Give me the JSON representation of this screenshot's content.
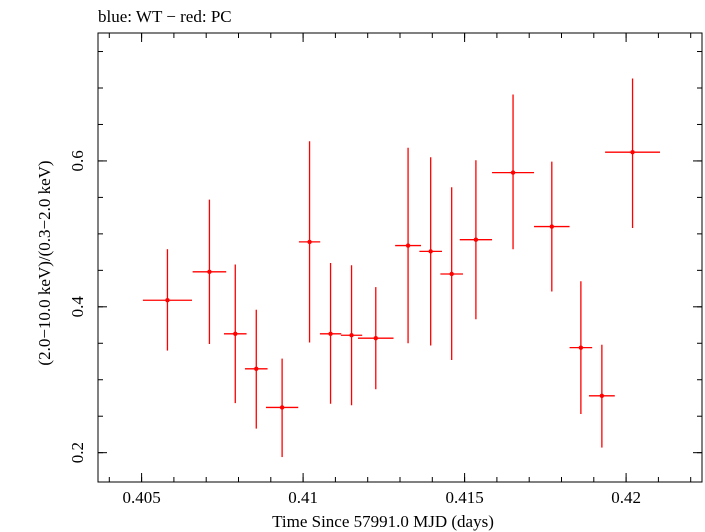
{
  "chart_data": {
    "type": "scatter",
    "title": "blue: WT − red: PC",
    "xlabel": "Time Since 57991.0 MJD (days)",
    "ylabel": "(2.0−10.0 keV)/(0.3−2.0 keV)",
    "xlim": [
      0.40365,
      0.42235
    ],
    "ylim": [
      0.1598,
      0.7754
    ],
    "x_ticks": [
      {
        "value": 0.405,
        "label": "0.405"
      },
      {
        "value": 0.41,
        "label": "0.41"
      },
      {
        "value": 0.415,
        "label": "0.415"
      },
      {
        "value": 0.42,
        "label": "0.42"
      }
    ],
    "x_minor_step": 0.001,
    "y_ticks": [
      {
        "value": 0.2,
        "label": "0.2"
      },
      {
        "value": 0.4,
        "label": "0.4"
      },
      {
        "value": 0.6,
        "label": "0.6"
      }
    ],
    "y_minor_step": 0.05,
    "grid": false,
    "series": [
      {
        "name": "PC",
        "color": "#ff0000",
        "points": [
          {
            "x": 0.4058,
            "y": 0.409,
            "xerr": 0.00076,
            "ylo": 0.34,
            "yhi": 0.479
          },
          {
            "x": 0.4071,
            "y": 0.448,
            "xerr": 0.00052,
            "ylo": 0.349,
            "yhi": 0.547
          },
          {
            "x": 0.4079,
            "y": 0.363,
            "xerr": 0.00035,
            "ylo": 0.268,
            "yhi": 0.458
          },
          {
            "x": 0.40855,
            "y": 0.315,
            "xerr": 0.00035,
            "ylo": 0.233,
            "yhi": 0.396
          },
          {
            "x": 0.40935,
            "y": 0.262,
            "xerr": 0.0005,
            "ylo": 0.194,
            "yhi": 0.329
          },
          {
            "x": 0.4102,
            "y": 0.489,
            "xerr": 0.00033,
            "ylo": 0.351,
            "yhi": 0.627
          },
          {
            "x": 0.41085,
            "y": 0.363,
            "xerr": 0.00033,
            "ylo": 0.267,
            "yhi": 0.46
          },
          {
            "x": 0.4115,
            "y": 0.361,
            "xerr": 0.00033,
            "ylo": 0.265,
            "yhi": 0.457
          },
          {
            "x": 0.41225,
            "y": 0.357,
            "xerr": 0.00055,
            "ylo": 0.287,
            "yhi": 0.427
          },
          {
            "x": 0.41325,
            "y": 0.484,
            "xerr": 0.0004,
            "ylo": 0.35,
            "yhi": 0.618
          },
          {
            "x": 0.41395,
            "y": 0.476,
            "xerr": 0.00035,
            "ylo": 0.347,
            "yhi": 0.605
          },
          {
            "x": 0.4146,
            "y": 0.445,
            "xerr": 0.00035,
            "ylo": 0.327,
            "yhi": 0.564
          },
          {
            "x": 0.41535,
            "y": 0.492,
            "xerr": 0.0005,
            "ylo": 0.383,
            "yhi": 0.601
          },
          {
            "x": 0.4165,
            "y": 0.584,
            "xerr": 0.00065,
            "ylo": 0.479,
            "yhi": 0.691
          },
          {
            "x": 0.4177,
            "y": 0.51,
            "xerr": 0.00055,
            "ylo": 0.421,
            "yhi": 0.599
          },
          {
            "x": 0.4186,
            "y": 0.344,
            "xerr": 0.00035,
            "ylo": 0.253,
            "yhi": 0.435
          },
          {
            "x": 0.41925,
            "y": 0.278,
            "xerr": 0.0004,
            "ylo": 0.207,
            "yhi": 0.348
          },
          {
            "x": 0.4202,
            "y": 0.612,
            "xerr": 0.00085,
            "ylo": 0.508,
            "yhi": 0.713
          }
        ]
      }
    ]
  }
}
